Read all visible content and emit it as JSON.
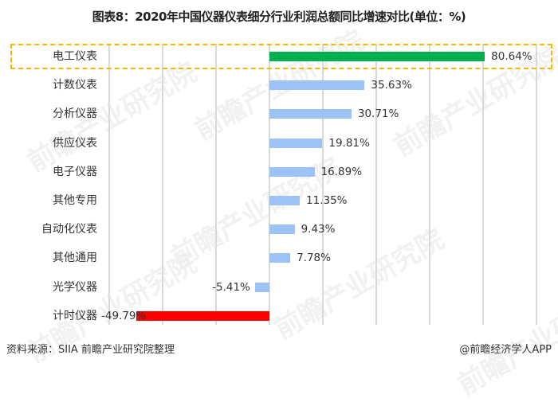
{
  "header": {
    "title": "图表8：2020年中国仪器仪表细分行业利润总额同比增速对比(单位：%)"
  },
  "footer": {
    "source": "资料来源：SIIA 前瞻产业研究院整理",
    "credit": "@前瞻经济学人APP"
  },
  "watermark": "前瞻产业研究院",
  "colors": {
    "highlight_bar": "#00b050",
    "positive_bar": "#9dc3f5",
    "negative_highlight_bar": "#ff0000",
    "highlight_box": "#f5b800",
    "gridline": "#d9d9d9"
  },
  "chart_data": {
    "type": "bar",
    "orientation": "horizontal",
    "title": "图表8：2020年中国仪器仪表细分行业利润总额同比增速对比(单位：%)",
    "xlabel": "",
    "ylabel": "",
    "unit": "%",
    "xlim": [
      -60,
      100
    ],
    "grid": true,
    "legend": null,
    "categories": [
      "电工仪表",
      "计数仪表",
      "分析仪器",
      "供应仪表",
      "电子仪器",
      "其他专用",
      "自动化仪表",
      "其他通用",
      "光学仪器",
      "计时仪器"
    ],
    "values": [
      80.64,
      35.63,
      30.71,
      19.81,
      16.89,
      11.35,
      9.43,
      7.78,
      -5.41,
      -49.79
    ],
    "labels": [
      "80.64%",
      "35.63%",
      "30.71%",
      "19.81%",
      "16.89%",
      "11.35%",
      "9.43%",
      "7.78%",
      "-5.41%",
      "-49.79%"
    ],
    "bar_colors": [
      "#00b050",
      "#9dc3f5",
      "#9dc3f5",
      "#9dc3f5",
      "#9dc3f5",
      "#9dc3f5",
      "#9dc3f5",
      "#9dc3f5",
      "#9dc3f5",
      "#ff0000"
    ],
    "annotations": [
      "电工仪表 highlighted with dashed orange box"
    ]
  }
}
